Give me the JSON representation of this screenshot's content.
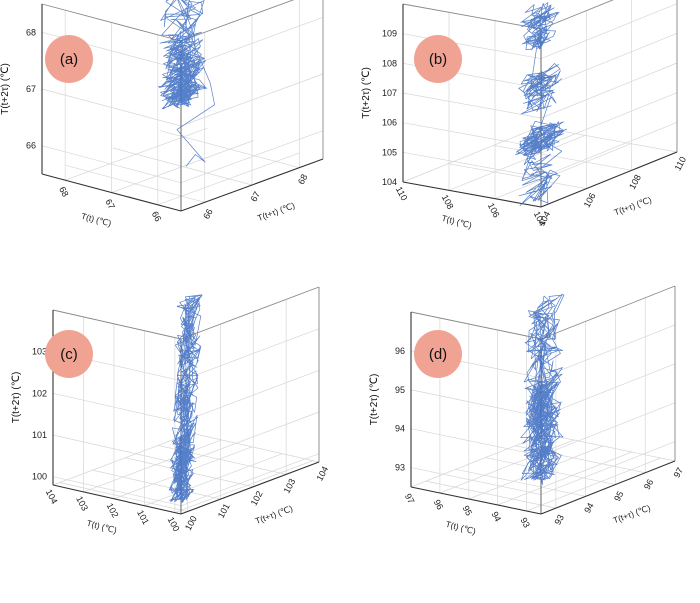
{
  "chart_data": [
    {
      "type": "line3d",
      "panel_label": "(a)",
      "xlabel": "T(t) (℃)",
      "ylabel": "T(t+τ) (℃)",
      "zlabel": "T(t+2τ) (℃)",
      "range": [
        65.5,
        68.5
      ],
      "x_ticks": [
        "66",
        "67",
        "68"
      ],
      "y_ticks": [
        "66",
        "67",
        "68"
      ],
      "z_ticks": [
        "66",
        "67",
        "68"
      ],
      "trajectory": {
        "start": [
          65.8,
          65.9,
          66.1
        ],
        "transient": [
          [
            65.7,
            66.0,
            66.3
          ],
          [
            65.9,
            66.4,
            66.0
          ],
          [
            66.2,
            66.1,
            66.6
          ],
          [
            66.0,
            66.7,
            66.9
          ],
          [
            66.4,
            67.0,
            67.1
          ]
        ],
        "clusters": [
          {
            "center": [
              67.6,
              67.6,
              67.6
            ],
            "spread_along": 0.8,
            "spread_across": 0.22,
            "n": 420
          }
        ]
      },
      "color": "#4472c4",
      "grid": true
    },
    {
      "type": "line3d",
      "panel_label": "(b)",
      "xlabel": "T(t) (℃)",
      "ylabel": "T(t+τ) (℃)",
      "zlabel": "T(t+2τ) (℃)",
      "range": [
        104,
        110
      ],
      "x_ticks": [
        "104",
        "106",
        "108",
        "110"
      ],
      "y_ticks": [
        "104",
        "106",
        "108",
        "110"
      ],
      "z_ticks": [
        "104",
        "105",
        "106",
        "107",
        "108",
        "109"
      ],
      "trajectory": {
        "clusters": [
          {
            "center": [
              105.0,
              105.0,
              105.0
            ],
            "spread_along": 0.7,
            "spread_across": 0.5,
            "n": 160
          },
          {
            "center": [
              106.6,
              106.6,
              106.6
            ],
            "spread_along": 0.6,
            "spread_across": 0.4,
            "n": 110
          },
          {
            "center": [
              108.5,
              108.5,
              108.5
            ],
            "spread_along": 0.6,
            "spread_across": 0.4,
            "n": 110
          }
        ]
      },
      "color": "#4472c4",
      "grid": true
    },
    {
      "type": "line3d",
      "panel_label": "(c)",
      "xlabel": "T(t) (℃)",
      "ylabel": "T(t+τ) (℃)",
      "zlabel": "T(t+2τ) (℃)",
      "range": [
        99.8,
        104
      ],
      "x_ticks": [
        "100",
        "101",
        "102",
        "103",
        "104"
      ],
      "y_ticks": [
        "100",
        "101",
        "102",
        "103",
        "104"
      ],
      "z_ticks": [
        "100",
        "101",
        "102",
        "103"
      ],
      "trajectory": {
        "clusters": [
          {
            "center": [
              101.7,
              101.7,
              101.7
            ],
            "spread_along": 1.6,
            "spread_across": 0.18,
            "n": 520
          }
        ]
      },
      "color": "#4472c4",
      "grid": true
    },
    {
      "type": "line3d",
      "panel_label": "(d)",
      "xlabel": "T(t) (℃)",
      "ylabel": "T(t+τ) (℃)",
      "zlabel": "T(t+2τ) (℃)",
      "range": [
        92.5,
        97
      ],
      "x_ticks": [
        "93",
        "94",
        "95",
        "96",
        "97"
      ],
      "y_ticks": [
        "93",
        "94",
        "95",
        "96",
        "97"
      ],
      "z_ticks": [
        "93",
        "94",
        "95",
        "96"
      ],
      "trajectory": {
        "clusters": [
          {
            "center": [
              94.7,
              94.7,
              94.7
            ],
            "spread_along": 1.5,
            "spread_across": 0.3,
            "n": 520
          }
        ]
      },
      "color": "#4472c4",
      "grid": true
    }
  ]
}
